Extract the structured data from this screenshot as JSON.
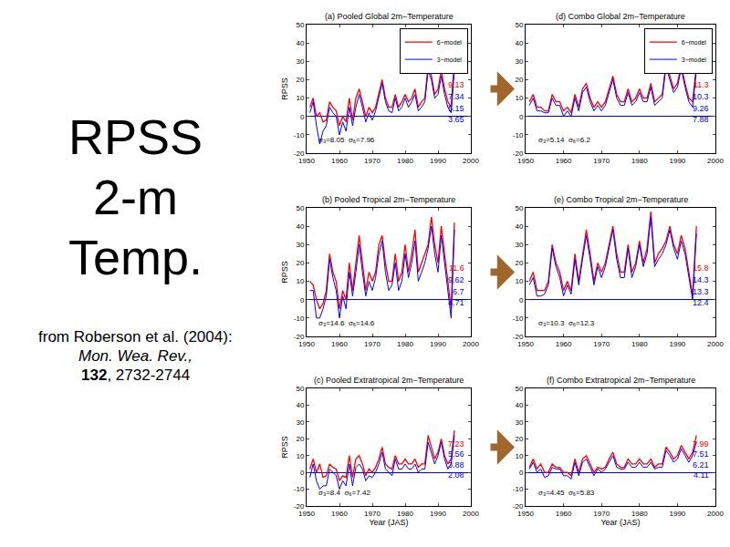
{
  "slide": {
    "title_lines": [
      "RPSS",
      "2-m",
      "Temp."
    ],
    "citation": {
      "text": "from Roberson et al. (2004):",
      "journal": "Mon. Wea. Rev.,",
      "volume": "132",
      "pages": ", 2732-2744"
    }
  },
  "chart_data": [
    {
      "type": "line",
      "title": "(a) Pooled Global 2m−Temperature",
      "ylabel": "RPSS",
      "legend": "upper right",
      "grid": false,
      "xlim": [
        1950,
        2000
      ],
      "xticks": [
        1950,
        1960,
        1970,
        1980,
        1990,
        2000
      ],
      "ylim": [
        -20,
        50
      ],
      "yticks": [
        -20,
        -10,
        0,
        10,
        20,
        30,
        40,
        50
      ],
      "x": [
        1951,
        1952,
        1953,
        1954,
        1955,
        1956,
        1957,
        1958,
        1959,
        1960,
        1961,
        1962,
        1963,
        1964,
        1965,
        1966,
        1967,
        1968,
        1969,
        1970,
        1971,
        1972,
        1973,
        1974,
        1975,
        1976,
        1977,
        1978,
        1979,
        1980,
        1981,
        1982,
        1983,
        1984,
        1985,
        1986,
        1987,
        1988,
        1989,
        1990,
        1991,
        1992,
        1993,
        1994,
        1995
      ],
      "series": [
        {
          "name": "6−model",
          "color": "red",
          "values": [
            5,
            10,
            0,
            2,
            -3,
            -2,
            8,
            5,
            3,
            -5,
            0,
            -3,
            10,
            -2,
            10,
            15,
            8,
            0,
            5,
            2,
            5,
            12,
            20,
            10,
            5,
            5,
            12,
            5,
            8,
            12,
            8,
            10,
            15,
            5,
            8,
            10,
            28,
            22,
            12,
            15,
            25,
            15,
            8,
            5,
            31
          ]
        },
        {
          "name": "3−model",
          "color": "blue",
          "values": [
            2,
            8,
            -5,
            -15,
            -8,
            -5,
            5,
            2,
            0,
            -10,
            -3,
            -8,
            5,
            -5,
            5,
            12,
            5,
            -3,
            2,
            -2,
            3,
            10,
            18,
            8,
            3,
            2,
            10,
            3,
            5,
            10,
            5,
            8,
            12,
            3,
            5,
            8,
            25,
            20,
            10,
            12,
            22,
            12,
            5,
            2,
            25
          ]
        }
      ],
      "side_values": {
        "values": [
          9.13,
          7.34,
          5.15,
          3.65
        ],
        "colors": [
          "red",
          "blue",
          "blue",
          "blue"
        ]
      },
      "stats": "σ₃=8.05  σ₆=7.96"
    },
    {
      "type": "line",
      "title": "(b) Pooled Tropical 2m−Temperature",
      "ylabel": "RPSS",
      "grid": false,
      "xlim": [
        1950,
        2000
      ],
      "xticks": [
        1950,
        1960,
        1970,
        1980,
        1990,
        2000
      ],
      "ylim": [
        -20,
        50
      ],
      "yticks": [
        -20,
        -10,
        0,
        10,
        20,
        30,
        40,
        50
      ],
      "x": [
        1951,
        1952,
        1953,
        1954,
        1955,
        1956,
        1957,
        1958,
        1959,
        1960,
        1961,
        1962,
        1963,
        1964,
        1965,
        1966,
        1967,
        1968,
        1969,
        1970,
        1971,
        1972,
        1973,
        1974,
        1975,
        1976,
        1977,
        1978,
        1979,
        1980,
        1981,
        1982,
        1983,
        1984,
        1985,
        1986,
        1987,
        1988,
        1989,
        1990,
        1991,
        1992,
        1993,
        1994,
        1995
      ],
      "series": [
        {
          "name": "6−model",
          "color": "red",
          "values": [
            10,
            8,
            0,
            -5,
            -2,
            5,
            25,
            15,
            10,
            -5,
            5,
            0,
            20,
            5,
            20,
            35,
            20,
            5,
            15,
            10,
            15,
            30,
            35,
            20,
            10,
            10,
            25,
            10,
            15,
            30,
            15,
            25,
            38,
            15,
            20,
            25,
            30,
            45,
            30,
            20,
            40,
            25,
            10,
            -5,
            42
          ]
        },
        {
          "name": "3−model",
          "color": "blue",
          "values": [
            5,
            5,
            -10,
            -10,
            -5,
            2,
            22,
            12,
            5,
            -10,
            2,
            -5,
            15,
            2,
            15,
            30,
            15,
            2,
            10,
            5,
            12,
            25,
            32,
            15,
            5,
            8,
            20,
            5,
            10,
            25,
            12,
            20,
            32,
            10,
            15,
            20,
            28,
            40,
            25,
            15,
            35,
            20,
            5,
            -10,
            38
          ]
        }
      ],
      "side_values": {
        "values": [
          11.6,
          9.62,
          6.7,
          4.71
        ],
        "colors": [
          "red",
          "blue",
          "blue",
          "blue"
        ]
      },
      "stats": "σ₃=14.6  σ₆=14.6"
    },
    {
      "type": "line",
      "title": "(c) Pooled Extratropical 2m−Temperature",
      "ylabel": "RPSS",
      "xlabel": "Year (JAS)",
      "grid": false,
      "xlim": [
        1950,
        2000
      ],
      "xticks": [
        1950,
        1960,
        1970,
        1980,
        1990,
        2000
      ],
      "ylim": [
        -20,
        50
      ],
      "yticks": [
        -20,
        -10,
        0,
        10,
        20,
        30,
        40,
        50
      ],
      "x": [
        1951,
        1952,
        1953,
        1954,
        1955,
        1956,
        1957,
        1958,
        1959,
        1960,
        1961,
        1962,
        1963,
        1964,
        1965,
        1966,
        1967,
        1968,
        1969,
        1970,
        1971,
        1972,
        1973,
        1974,
        1975,
        1976,
        1977,
        1978,
        1979,
        1980,
        1981,
        1982,
        1983,
        1984,
        1985,
        1986,
        1987,
        1988,
        1989,
        1990,
        1991,
        1992,
        1993,
        1994,
        1995
      ],
      "series": [
        {
          "name": "6−model",
          "color": "red",
          "values": [
            2,
            8,
            0,
            5,
            -3,
            -2,
            5,
            3,
            2,
            -5,
            -2,
            -3,
            10,
            -3,
            8,
            10,
            5,
            -2,
            2,
            0,
            3,
            8,
            15,
            5,
            3,
            2,
            10,
            5,
            5,
            8,
            5,
            5,
            8,
            3,
            5,
            5,
            22,
            15,
            8,
            12,
            20,
            10,
            5,
            8,
            25
          ]
        },
        {
          "name": "3−model",
          "color": "blue",
          "values": [
            -3,
            5,
            -5,
            -10,
            -8,
            -8,
            2,
            0,
            -2,
            -10,
            -5,
            -8,
            5,
            -8,
            3,
            5,
            2,
            -5,
            -2,
            -3,
            0,
            5,
            12,
            2,
            0,
            -2,
            8,
            2,
            2,
            5,
            2,
            2,
            5,
            0,
            2,
            2,
            18,
            12,
            5,
            10,
            18,
            8,
            2,
            5,
            22
          ]
        }
      ],
      "side_values": {
        "values": [
          7.23,
          5.56,
          3.88,
          2.08
        ],
        "colors": [
          "red",
          "blue",
          "blue",
          "blue"
        ]
      },
      "stats": "σ₃=8.4  σ₆=7.42"
    },
    {
      "type": "line",
      "title": "(d) Combo Global 2m−Temperature",
      "legend": "upper right",
      "grid": false,
      "xlim": [
        1950,
        2000
      ],
      "xticks": [
        1950,
        1960,
        1970,
        1980,
        1990,
        2000
      ],
      "ylim": [
        -20,
        50
      ],
      "yticks": [
        -20,
        -10,
        0,
        10,
        20,
        30,
        40,
        50
      ],
      "x": [
        1951,
        1952,
        1953,
        1954,
        1955,
        1956,
        1957,
        1958,
        1959,
        1960,
        1961,
        1962,
        1963,
        1964,
        1965,
        1966,
        1967,
        1968,
        1969,
        1970,
        1971,
        1972,
        1973,
        1974,
        1975,
        1976,
        1977,
        1978,
        1979,
        1980,
        1981,
        1982,
        1983,
        1984,
        1985,
        1986,
        1987,
        1988,
        1989,
        1990,
        1991,
        1992,
        1993,
        1994,
        1995
      ],
      "series": [
        {
          "name": "6−model",
          "color": "red",
          "values": [
            8,
            12,
            5,
            5,
            3,
            3,
            12,
            8,
            8,
            3,
            5,
            2,
            12,
            5,
            15,
            18,
            10,
            5,
            8,
            5,
            8,
            15,
            22,
            12,
            8,
            8,
            15,
            8,
            10,
            15,
            10,
            10,
            18,
            8,
            10,
            12,
            29,
            22,
            15,
            18,
            28,
            18,
            10,
            8,
            28
          ]
        },
        {
          "name": "3−model",
          "color": "blue",
          "values": [
            6,
            10,
            3,
            3,
            2,
            2,
            10,
            6,
            6,
            0,
            3,
            0,
            10,
            3,
            13,
            16,
            8,
            3,
            6,
            3,
            6,
            13,
            20,
            10,
            6,
            6,
            13,
            6,
            8,
            13,
            8,
            8,
            16,
            6,
            8,
            10,
            27,
            20,
            13,
            16,
            26,
            16,
            8,
            5,
            25
          ]
        }
      ],
      "side_values": {
        "values": [
          11.3,
          10.3,
          9.26,
          7.88
        ],
        "colors": [
          "red",
          "blue",
          "blue",
          "blue"
        ]
      },
      "stats": "σ₃=5.14  σ₆=6.2"
    },
    {
      "type": "line",
      "title": "(e) Combo Tropical 2m−Temperature",
      "grid": false,
      "xlim": [
        1950,
        2000
      ],
      "xticks": [
        1950,
        1960,
        1970,
        1980,
        1990,
        2000
      ],
      "ylim": [
        -20,
        50
      ],
      "yticks": [
        -20,
        -10,
        0,
        10,
        20,
        30,
        40,
        50
      ],
      "x": [
        1951,
        1952,
        1953,
        1954,
        1955,
        1956,
        1957,
        1958,
        1959,
        1960,
        1961,
        1962,
        1963,
        1964,
        1965,
        1966,
        1967,
        1968,
        1969,
        1970,
        1971,
        1972,
        1973,
        1974,
        1975,
        1976,
        1977,
        1978,
        1979,
        1980,
        1981,
        1982,
        1983,
        1984,
        1985,
        1986,
        1987,
        1988,
        1989,
        1990,
        1991,
        1992,
        1993,
        1994,
        1995
      ],
      "series": [
        {
          "name": "6−model",
          "color": "red",
          "values": [
            10,
            15,
            5,
            5,
            5,
            10,
            30,
            20,
            15,
            5,
            10,
            5,
            25,
            10,
            25,
            38,
            25,
            10,
            20,
            15,
            20,
            30,
            40,
            25,
            15,
            15,
            30,
            15,
            20,
            32,
            20,
            28,
            48,
            20,
            25,
            28,
            32,
            40,
            30,
            25,
            35,
            28,
            15,
            2,
            40
          ]
        },
        {
          "name": "3−model",
          "color": "blue",
          "values": [
            8,
            12,
            2,
            2,
            3,
            8,
            28,
            18,
            12,
            2,
            8,
            3,
            22,
            8,
            22,
            35,
            22,
            8,
            18,
            12,
            18,
            28,
            38,
            22,
            12,
            12,
            28,
            12,
            18,
            30,
            18,
            25,
            45,
            18,
            22,
            25,
            30,
            38,
            28,
            22,
            32,
            25,
            12,
            0,
            36
          ]
        }
      ],
      "side_values": {
        "values": [
          15.8,
          14.3,
          13.3,
          12.4
        ],
        "colors": [
          "red",
          "blue",
          "blue",
          "blue"
        ]
      },
      "stats": "σ₃=10.3  σ₆=12.3"
    },
    {
      "type": "line",
      "title": "(f) Combo Extratropical 2m−Temperature",
      "xlabel": "Year (JAS)",
      "grid": false,
      "xlim": [
        1950,
        2000
      ],
      "xticks": [
        1950,
        1960,
        1970,
        1980,
        1990,
        2000
      ],
      "ylim": [
        -20,
        50
      ],
      "yticks": [
        -20,
        -10,
        0,
        10,
        20,
        30,
        40,
        50
      ],
      "x": [
        1951,
        1952,
        1953,
        1954,
        1955,
        1956,
        1957,
        1958,
        1959,
        1960,
        1961,
        1962,
        1963,
        1964,
        1965,
        1966,
        1967,
        1968,
        1969,
        1970,
        1971,
        1972,
        1973,
        1974,
        1975,
        1976,
        1977,
        1978,
        1979,
        1980,
        1981,
        1982,
        1983,
        1984,
        1985,
        1986,
        1987,
        1988,
        1989,
        1990,
        1991,
        1992,
        1993,
        1994,
        1995
      ],
      "series": [
        {
          "name": "6−model",
          "color": "red",
          "values": [
            3,
            8,
            2,
            5,
            0,
            0,
            5,
            3,
            3,
            0,
            0,
            -2,
            8,
            0,
            8,
            10,
            5,
            0,
            3,
            2,
            3,
            8,
            12,
            5,
            3,
            3,
            8,
            5,
            5,
            8,
            5,
            5,
            8,
            3,
            5,
            5,
            15,
            12,
            8,
            10,
            16,
            12,
            8,
            12,
            22
          ]
        },
        {
          "name": "3−model",
          "color": "blue",
          "values": [
            2,
            6,
            0,
            2,
            -3,
            -2,
            3,
            2,
            2,
            -2,
            -2,
            -4,
            6,
            -2,
            6,
            8,
            3,
            -2,
            2,
            0,
            2,
            6,
            10,
            3,
            2,
            2,
            6,
            3,
            3,
            6,
            3,
            3,
            6,
            2,
            3,
            3,
            13,
            10,
            6,
            8,
            14,
            10,
            6,
            10,
            18
          ]
        }
      ],
      "side_values": {
        "values": [
          7.99,
          7.51,
          6.21,
          4.11
        ],
        "colors": [
          "red",
          "blue",
          "blue",
          "blue"
        ]
      },
      "stats": "σ₃=4.45  σ₆=5.83"
    }
  ]
}
